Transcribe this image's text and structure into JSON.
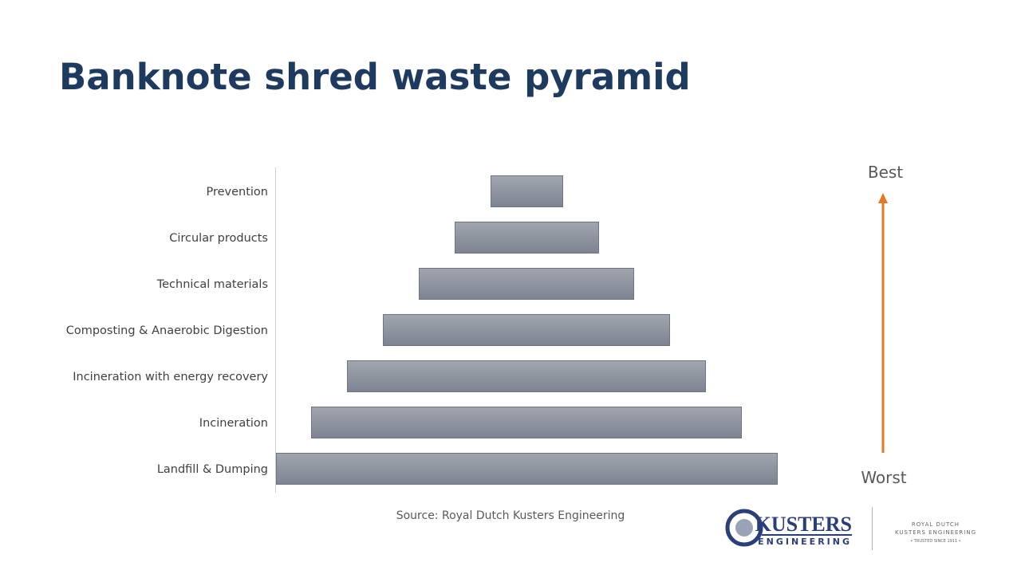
{
  "header": {
    "title": "Banknote shred waste pyramid"
  },
  "pyramid": {
    "levels": [
      "Prevention",
      "Circular products",
      "Technical materials",
      "Composting & Anaerobic Digestion",
      "Incineration with energy recovery",
      "Incineration",
      "Landfill & Dumping"
    ],
    "top_label": "Best",
    "bottom_label": "Worst"
  },
  "source": "Source: Royal Dutch Kusters Engineering",
  "logo": {
    "name": "KUSTERS",
    "sub": "ENGINEERING",
    "royal": "ROYAL DUTCH",
    "royal_name": "KUSTERS ENGINEERING",
    "tagline": "• TRUSTED SINCE 1911 •"
  }
}
